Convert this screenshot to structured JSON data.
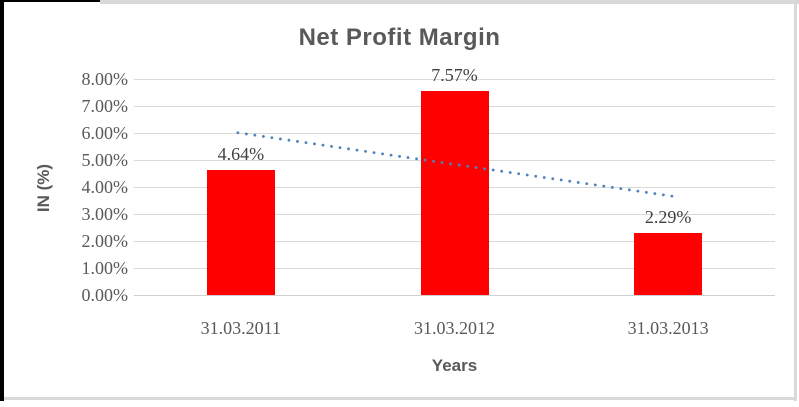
{
  "window": {
    "background": "#ffffff",
    "frame_border_color": "#d9d9d9",
    "frame_accent_color": "#000000"
  },
  "chart_data": {
    "type": "bar",
    "title": "Net Profit Margin",
    "xlabel": "Years",
    "ylabel": "IN (%)",
    "categories": [
      "31.03.2011",
      "31.03.2012",
      "31.03.2013"
    ],
    "values": [
      4.64,
      7.57,
      2.29
    ],
    "data_labels": [
      "4.64%",
      "7.57%",
      "2.29%"
    ],
    "y_ticks": [
      "0.00%",
      "1.00%",
      "2.00%",
      "3.00%",
      "4.00%",
      "5.00%",
      "6.00%",
      "7.00%",
      "8.00%"
    ],
    "y_tick_values": [
      0,
      1,
      2,
      3,
      4,
      5,
      6,
      7,
      8
    ],
    "ylim": [
      0,
      8
    ],
    "grid": true,
    "legend": "none",
    "bar_color": "#ff0000",
    "gridline_color": "#d9d9d9",
    "title_color": "#595959",
    "axis_title_color": "#595959",
    "tick_label_color": "#595959",
    "data_label_color": "#404040",
    "trendline": {
      "type": "linear",
      "style": "dotted",
      "color": "#4f81bd",
      "start_value": 6.01,
      "end_value": 3.66
    }
  }
}
